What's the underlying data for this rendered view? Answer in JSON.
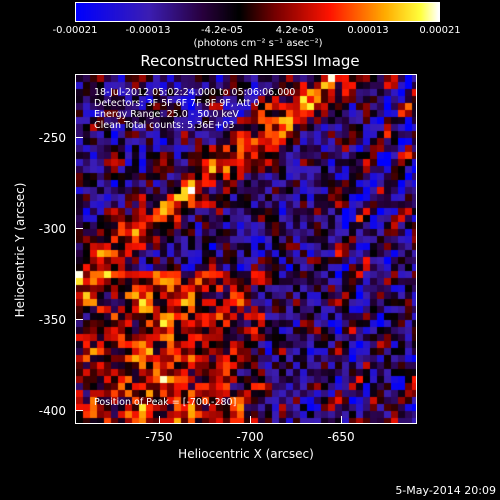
{
  "colorbar": {
    "ticks": [
      "-0.00021",
      "-0.00013",
      "-4.2e-05",
      "4.2e-05",
      "0.00013",
      "0.00021"
    ],
    "units": "(photons cm⁻² s⁻¹ asec⁻²)",
    "colors": [
      "#0000ff",
      "#ff0000",
      "#ffff00",
      "#ffffff"
    ]
  },
  "plot": {
    "title": "Reconstructed RHESSI Image",
    "info_lines": [
      "18-Jul-2012 05:02:24.000 to 05:06:06.000",
      "Detectors: 3F 5F 6F 7F 8F 9F, Att 0",
      "Energy Range: 25.0 - 50.0 keV",
      "Clean    Total counts: 5.36E+03"
    ],
    "peak_label": "Position of Peak = [-700,-280]",
    "y_ticks": [
      "-250",
      "-300",
      "-350",
      "-400"
    ],
    "x_ticks": [
      "-750",
      "-700",
      "-650"
    ],
    "ylabel": "Heliocentric  Y (arcsec)",
    "xlabel": "Heliocentric X (arcsec)"
  },
  "footer": {
    "date": "5-May-2014 20:09"
  }
}
